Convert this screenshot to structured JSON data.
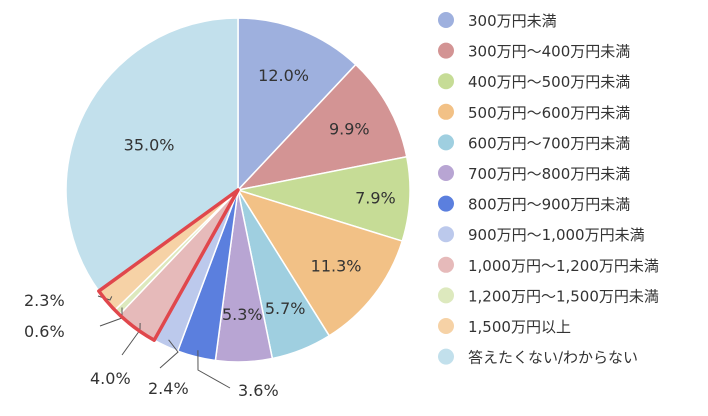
{
  "chart_data": {
    "type": "pie",
    "categories": [
      "300万円未満",
      "300万円～400万円未満",
      "400万円～500万円未満",
      "500万円～600万円未満",
      "600万円～700万円未満",
      "700万円～800万円未満",
      "800万円～900万円未満",
      "900万円～1,000万円未満",
      "1,000万円～1,200万円未満",
      "1,200万円～1,500万円未満",
      "1,500万円以上",
      "答えたくない/わからない"
    ],
    "values": [
      12.0,
      9.9,
      7.9,
      11.3,
      5.7,
      5.3,
      3.6,
      2.4,
      4.0,
      0.6,
      2.3,
      35.0
    ],
    "value_labels": [
      "12.0%",
      "9.9%",
      "7.9%",
      "11.3%",
      "5.7%",
      "5.3%",
      "3.6%",
      "2.4%",
      "4.0%",
      "0.6%",
      "2.3%",
      "35.0%"
    ],
    "colors": [
      "#9eb0de",
      "#d39494",
      "#c6dc96",
      "#f2c186",
      "#9fcfe0",
      "#b8a5d3",
      "#5b7fde",
      "#bcc9ec",
      "#e6baba",
      "#dde9be",
      "#f6d2a6",
      "#c2e0ec"
    ],
    "highlight_indices": [
      8,
      9,
      10
    ],
    "highlight_color": "#e0474c",
    "legend_position": "right"
  }
}
